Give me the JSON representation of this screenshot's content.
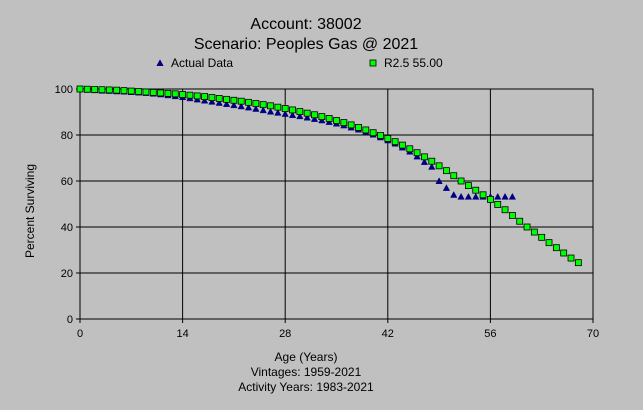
{
  "chart_data": {
    "type": "scatter",
    "title": "Account: 38002",
    "subtitle": "Scenario: Peoples Gas @ 2021",
    "xlabel": "Age (Years)",
    "ylabel": "Percent Surviving",
    "footnotes": [
      "Vintages: 1959-2021",
      "Activity Years: 1983-2021"
    ],
    "xlim": [
      0,
      70
    ],
    "ylim": [
      0,
      100
    ],
    "x_ticks": [
      0,
      14,
      28,
      42,
      56,
      70
    ],
    "y_ticks": [
      0,
      20,
      40,
      60,
      80,
      100
    ],
    "grid": true,
    "legend_position": "top",
    "series": [
      {
        "name": "Actual Data",
        "marker": "triangle",
        "color": "#000080",
        "points": [
          [
            0,
            100
          ],
          [
            1,
            99.7
          ],
          [
            2,
            99.5
          ],
          [
            3,
            99.3
          ],
          [
            4,
            99.2
          ],
          [
            5,
            99.0
          ],
          [
            6,
            98.9
          ],
          [
            7,
            98.7
          ],
          [
            8,
            98.5
          ],
          [
            9,
            98.3
          ],
          [
            10,
            98.0
          ],
          [
            11,
            97.7
          ],
          [
            12,
            97.3
          ],
          [
            13,
            96.9
          ],
          [
            14,
            96.5
          ],
          [
            15,
            96.0
          ],
          [
            16,
            95.5
          ],
          [
            17,
            95.0
          ],
          [
            18,
            94.5
          ],
          [
            19,
            94.0
          ],
          [
            20,
            93.5
          ],
          [
            21,
            93.0
          ],
          [
            22,
            92.5
          ],
          [
            23,
            92.0
          ],
          [
            24,
            91.4
          ],
          [
            25,
            90.8
          ],
          [
            26,
            90.2
          ],
          [
            27,
            89.7
          ],
          [
            28,
            89.2
          ],
          [
            29,
            88.7
          ],
          [
            30,
            88.2
          ],
          [
            31,
            87.6
          ],
          [
            32,
            87.0
          ],
          [
            33,
            86.4
          ],
          [
            34,
            85.7
          ],
          [
            35,
            85.0
          ],
          [
            36,
            84.2
          ],
          [
            37,
            83.3
          ],
          [
            38,
            82.4
          ],
          [
            39,
            81.3
          ],
          [
            40,
            80.2
          ],
          [
            41,
            79.0
          ],
          [
            42,
            77.7
          ],
          [
            43,
            76.3
          ],
          [
            44,
            74.6
          ],
          [
            45,
            72.8
          ],
          [
            46,
            70.7
          ],
          [
            47,
            68.3
          ],
          [
            48,
            66.2
          ],
          [
            49,
            60.0
          ],
          [
            50,
            57.0
          ],
          [
            51,
            54.0
          ],
          [
            52,
            53.2
          ],
          [
            53,
            53.2
          ],
          [
            54,
            53.2
          ],
          [
            55,
            53.2
          ],
          [
            56,
            53.2
          ],
          [
            57,
            53.2
          ],
          [
            58,
            53.2
          ],
          [
            59,
            53.2
          ]
        ]
      },
      {
        "name": "R2.5 55.00",
        "marker": "square",
        "color": "#00ff00",
        "points": [
          [
            0,
            100
          ],
          [
            1,
            99.9
          ],
          [
            2,
            99.8
          ],
          [
            3,
            99.7
          ],
          [
            4,
            99.6
          ],
          [
            5,
            99.5
          ],
          [
            6,
            99.3
          ],
          [
            7,
            99.1
          ],
          [
            8,
            98.9
          ],
          [
            9,
            98.7
          ],
          [
            10,
            98.5
          ],
          [
            11,
            98.3
          ],
          [
            12,
            98.1
          ],
          [
            13,
            97.9
          ],
          [
            14,
            97.6
          ],
          [
            15,
            97.3
          ],
          [
            16,
            97.0
          ],
          [
            17,
            96.7
          ],
          [
            18,
            96.3
          ],
          [
            19,
            95.9
          ],
          [
            20,
            95.5
          ],
          [
            21,
            95.1
          ],
          [
            22,
            94.7
          ],
          [
            23,
            94.2
          ],
          [
            24,
            93.7
          ],
          [
            25,
            93.2
          ],
          [
            26,
            92.7
          ],
          [
            27,
            92.1
          ],
          [
            28,
            91.5
          ],
          [
            29,
            90.9
          ],
          [
            30,
            90.2
          ],
          [
            31,
            89.5
          ],
          [
            32,
            88.8
          ],
          [
            33,
            88.0
          ],
          [
            34,
            87.2
          ],
          [
            35,
            86.3
          ],
          [
            36,
            85.4
          ],
          [
            37,
            84.4
          ],
          [
            38,
            83.3
          ],
          [
            39,
            82.2
          ],
          [
            40,
            81.0
          ],
          [
            41,
            79.8
          ],
          [
            42,
            78.5
          ],
          [
            43,
            77.1
          ],
          [
            44,
            75.6
          ],
          [
            45,
            74.0
          ],
          [
            46,
            72.3
          ],
          [
            47,
            70.5
          ],
          [
            48,
            68.6
          ],
          [
            49,
            66.6
          ],
          [
            50,
            64.5
          ],
          [
            51,
            62.3
          ],
          [
            52,
            60.0
          ],
          [
            53,
            58.0
          ],
          [
            54,
            56.0
          ],
          [
            55,
            54.0
          ],
          [
            56,
            52.0
          ],
          [
            57,
            49.8
          ],
          [
            58,
            47.5
          ],
          [
            59,
            45.0
          ],
          [
            60,
            42.5
          ],
          [
            61,
            40.0
          ],
          [
            62,
            37.8
          ],
          [
            63,
            35.5
          ],
          [
            64,
            33.2
          ],
          [
            65,
            31.0
          ],
          [
            66,
            28.7
          ],
          [
            67,
            26.5
          ],
          [
            68,
            24.5
          ]
        ]
      }
    ]
  }
}
